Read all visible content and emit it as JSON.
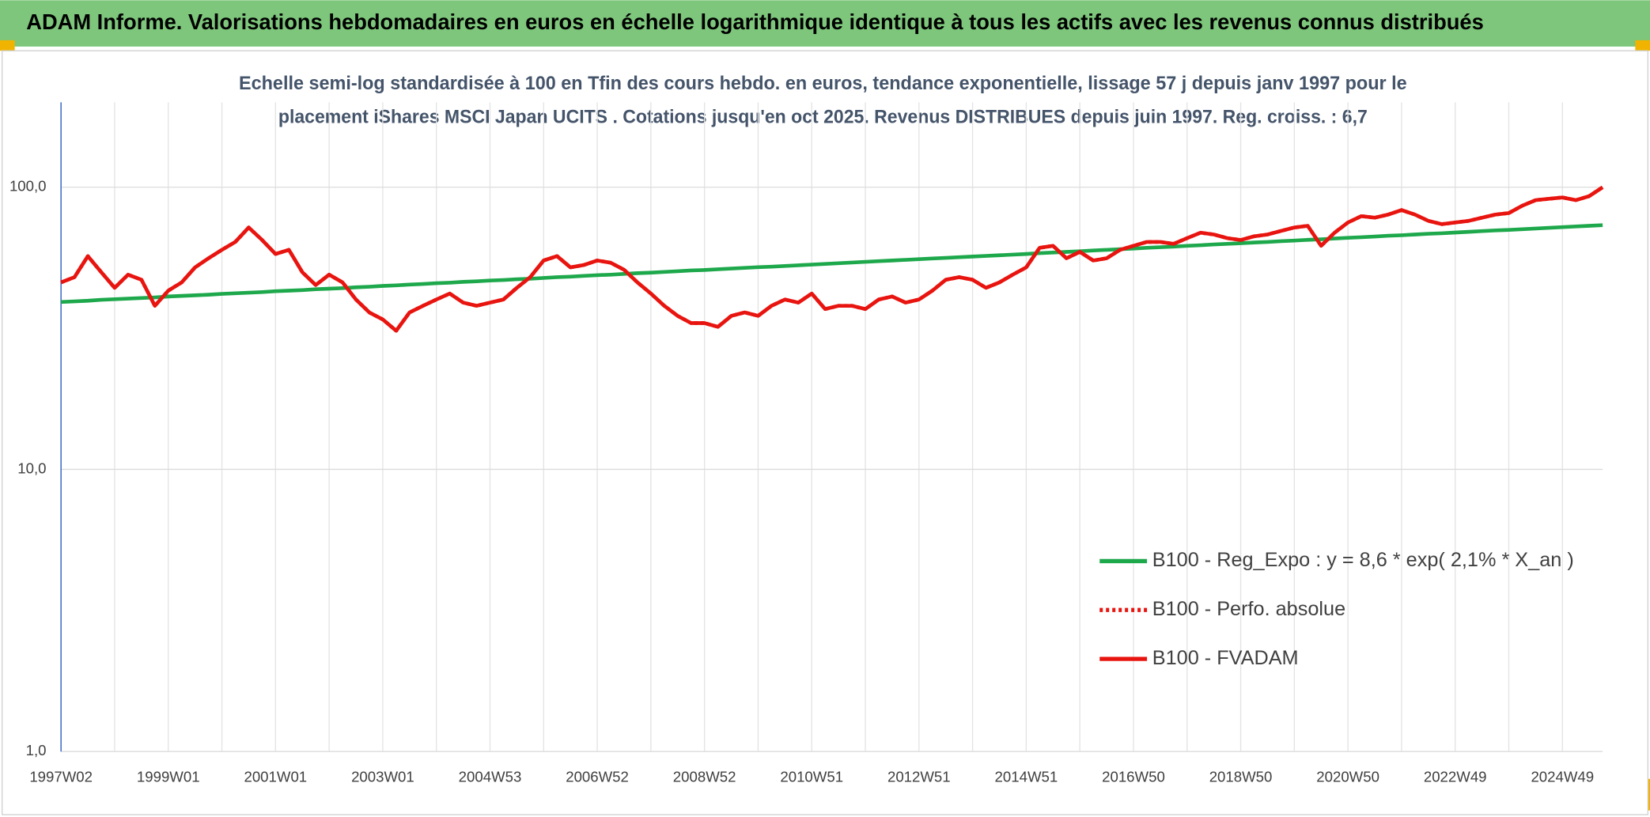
{
  "chart_data": {
    "type": "line",
    "header": "ADAM Informe. Valorisations hebdomadaires en euros en échelle logarithmique identique à tous les actifs avec les revenus connus distribués",
    "subtitle": [
      "Echelle semi-log standardisée à 100 en Tfin des cours hebdo. en euros, tendance exponentielle, lissage 57 j depuis janv 1997 pour le",
      "placement iShares MSCI Japan UCITS . Cotations jusqu'en oct 2025. Revenus DISTRIBUES depuis juin 1997. Reg. croiss. : 6,7"
    ],
    "categories": [
      "1997W02",
      null,
      null,
      null,
      null,
      null,
      null,
      null,
      "1999W01",
      null,
      null,
      null,
      null,
      null,
      null,
      null,
      "2001W01",
      null,
      null,
      null,
      null,
      null,
      null,
      null,
      "2003W01",
      null,
      null,
      null,
      null,
      null,
      null,
      null,
      "2004W53",
      null,
      null,
      null,
      null,
      null,
      null,
      null,
      "2006W52",
      null,
      null,
      null,
      null,
      null,
      null,
      null,
      "2008W52",
      null,
      null,
      null,
      null,
      null,
      null,
      null,
      "2010W51",
      null,
      null,
      null,
      null,
      null,
      null,
      null,
      "2012W51",
      null,
      null,
      null,
      null,
      null,
      null,
      null,
      "2014W51",
      null,
      null,
      null,
      null,
      null,
      null,
      null,
      "2016W50",
      null,
      null,
      null,
      null,
      null,
      null,
      null,
      "2018W50",
      null,
      null,
      null,
      null,
      null,
      null,
      null,
      "2020W50",
      null,
      null,
      null,
      null,
      null,
      null,
      null,
      "2022W49",
      null,
      null,
      null,
      null,
      null,
      null,
      null,
      "2024W49",
      null,
      null,
      null
    ],
    "series": [
      {
        "name": "B100 - Reg_Expo : y = 8,6 * exp( 2,1% *  X_an )",
        "color": "#1ea84c",
        "style": "solid",
        "values": [
          39.2,
          39.4,
          39.6,
          39.9,
          40.1,
          40.3,
          40.5,
          40.7,
          41.0,
          41.2,
          41.4,
          41.6,
          41.9,
          42.1,
          42.3,
          42.5,
          42.8,
          43.0,
          43.2,
          43.5,
          43.7,
          43.9,
          44.2,
          44.4,
          44.7,
          44.9,
          45.2,
          45.4,
          45.7,
          45.9,
          46.2,
          46.4,
          46.7,
          46.9,
          47.2,
          47.4,
          47.7,
          48.0,
          48.2,
          48.5,
          48.8,
          49.0,
          49.3,
          49.6,
          49.8,
          50.1,
          50.4,
          50.7,
          50.9,
          51.2,
          51.5,
          51.8,
          52.1,
          52.3,
          52.6,
          52.9,
          53.2,
          53.5,
          53.8,
          54.1,
          54.4,
          54.7,
          55.0,
          55.3,
          55.6,
          55.9,
          56.2,
          56.5,
          56.8,
          57.1,
          57.4,
          57.7,
          58.0,
          58.4,
          58.7,
          59.0,
          59.3,
          59.7,
          60.0,
          60.3,
          60.6,
          61.0,
          61.3,
          61.6,
          62.0,
          62.3,
          62.7,
          63.0,
          63.3,
          63.7,
          64.0,
          64.4,
          64.7,
          65.1,
          65.4,
          65.8,
          66.2,
          66.5,
          66.9,
          67.3,
          67.6,
          68.0,
          68.4,
          68.7,
          69.1,
          69.5,
          69.9,
          70.3,
          70.6,
          71.0,
          71.4,
          71.8,
          72.2,
          72.6,
          73.0,
          73.4
        ]
      },
      {
        "name": "B100 - Perfo. absolue",
        "color": "#e8140f",
        "style": "dotted",
        "values": [
          46,
          48,
          57,
          50,
          44,
          49,
          47,
          38,
          43,
          46,
          52,
          56,
          60,
          64,
          72,
          65,
          58,
          60,
          50,
          45,
          49,
          46,
          40,
          36,
          34,
          31,
          36,
          38,
          40,
          42,
          39,
          38,
          39,
          40,
          44,
          48,
          55,
          57,
          52,
          53,
          55,
          54,
          51,
          46,
          42,
          38,
          35,
          33,
          33,
          32,
          35,
          36,
          35,
          38,
          40,
          39,
          42,
          37,
          38,
          38,
          37,
          40,
          41,
          39,
          40,
          43,
          47,
          48,
          47,
          44,
          46,
          49,
          52,
          61,
          62,
          56,
          59,
          55,
          56,
          60,
          62,
          64,
          64,
          63,
          66,
          69,
          68,
          66,
          65,
          67,
          68,
          70,
          72,
          73,
          62,
          69,
          75,
          79,
          78,
          80,
          83,
          80,
          76,
          74,
          75,
          76,
          78,
          80,
          81,
          86,
          90,
          91,
          92,
          90,
          93,
          100
        ]
      },
      {
        "name": "B100 - FVADAM",
        "color": "#e8140f",
        "style": "solid",
        "values": [
          46,
          48,
          57,
          50,
          44,
          49,
          47,
          38,
          43,
          46,
          52,
          56,
          60,
          64,
          72,
          65,
          58,
          60,
          50,
          45,
          49,
          46,
          40,
          36,
          34,
          31,
          36,
          38,
          40,
          42,
          39,
          38,
          39,
          40,
          44,
          48,
          55,
          57,
          52,
          53,
          55,
          54,
          51,
          46,
          42,
          38,
          35,
          33,
          33,
          32,
          35,
          36,
          35,
          38,
          40,
          39,
          42,
          37,
          38,
          38,
          37,
          40,
          41,
          39,
          40,
          43,
          47,
          48,
          47,
          44,
          46,
          49,
          52,
          61,
          62,
          56,
          59,
          55,
          56,
          60,
          62,
          64,
          64,
          63,
          66,
          69,
          68,
          66,
          65,
          67,
          68,
          70,
          72,
          73,
          62,
          69,
          75,
          79,
          78,
          80,
          83,
          80,
          76,
          74,
          75,
          76,
          78,
          80,
          81,
          86,
          90,
          91,
          92,
          90,
          93,
          100
        ]
      }
    ],
    "log_y": true,
    "ylim": [
      1,
      200
    ],
    "yticks": [
      {
        "value": 1,
        "label": "1,0"
      },
      {
        "value": 10,
        "label": "10,0"
      },
      {
        "value": 100,
        "label": "100,0"
      }
    ],
    "grid": true,
    "legend": "lower-right"
  }
}
